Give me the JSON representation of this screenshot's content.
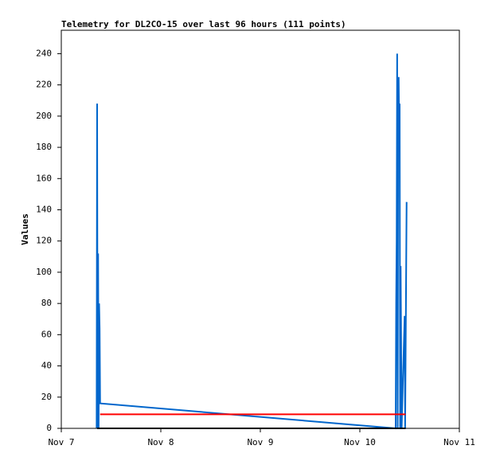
{
  "chart_data": {
    "type": "line",
    "title": "Telemetry for DL2CO-15 over last 96 hours (111 points)",
    "y_label": "Values",
    "xlim": [
      0,
      4
    ],
    "xticks": [
      {
        "value": 0,
        "label": "Nov 7"
      },
      {
        "value": 1,
        "label": "Nov 8"
      },
      {
        "value": 2,
        "label": "Nov 9"
      },
      {
        "value": 3,
        "label": "Nov 10"
      },
      {
        "value": 4,
        "label": "Nov 11"
      }
    ],
    "ylim": [
      0,
      255
    ],
    "yticks": [
      0,
      20,
      40,
      60,
      80,
      100,
      120,
      140,
      160,
      180,
      200,
      220,
      240
    ],
    "series": [
      {
        "color": "#0066cc",
        "x": [
          0.355,
          0.36,
          0.365,
          0.37,
          0.375,
          0.38,
          0.385,
          0.39,
          3.36,
          3.365,
          3.37,
          3.375,
          3.38,
          3.385,
          3.39,
          3.395,
          3.4,
          3.405,
          3.41,
          3.42,
          3.45,
          3.455,
          3.47
        ],
        "values": [
          0,
          208,
          0,
          112,
          0,
          80,
          64,
          16,
          0,
          80,
          120,
          240,
          0,
          192,
          225,
          192,
          208,
          0,
          104,
          0,
          72,
          0,
          145
        ]
      },
      {
        "color": "#ff0000",
        "x": [
          0.39,
          3.46
        ],
        "values": [
          9,
          9
        ]
      },
      {
        "color": "#000000",
        "x": [
          0.36,
          3.46
        ],
        "values": [
          0,
          0
        ]
      }
    ]
  }
}
